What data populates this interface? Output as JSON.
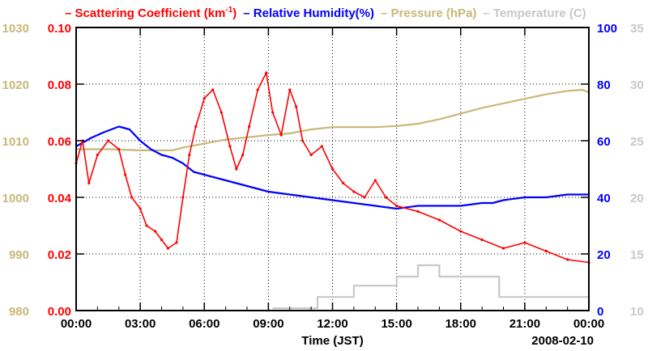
{
  "chart_data": {
    "type": "line",
    "legend": [
      {
        "label": "Scattering Coefficient (km",
        "sup": "-1",
        "close": ")",
        "color": "#ff0000"
      },
      {
        "label": "Relative Humidity(%)",
        "color": "#0000ff"
      },
      {
        "label": "Pressure (hPa)",
        "color": "#c8b878"
      },
      {
        "label": "Temperature (C)",
        "color": "#c8c8c8"
      }
    ],
    "xlabel": "Time (JST)",
    "date": "2008-02-10",
    "x_range": [
      0,
      24
    ],
    "x_ticks": [
      0,
      3,
      6,
      9,
      12,
      15,
      18,
      21,
      24
    ],
    "x_tick_labels": [
      "00:00",
      "03:00",
      "06:00",
      "09:00",
      "12:00",
      "15:00",
      "18:00",
      "21:00",
      "00:00"
    ],
    "axes": {
      "scattering": {
        "range": [
          0,
          0.1
        ],
        "ticks": [
          0,
          0.02,
          0.04,
          0.06,
          0.08,
          0.1
        ],
        "labels": [
          "0.00",
          "0.02",
          "0.04",
          "0.06",
          "0.08",
          "0.10"
        ],
        "color": "#ff0000"
      },
      "pressure": {
        "range": [
          980,
          1030
        ],
        "ticks": [
          980,
          990,
          1000,
          1010,
          1020,
          1030
        ],
        "labels": [
          "980",
          "990",
          "1000",
          "1010",
          "1020",
          "1030"
        ],
        "color": "#c8b878"
      },
      "humidity": {
        "range": [
          0,
          100
        ],
        "ticks": [
          0,
          20,
          40,
          60,
          80,
          100
        ],
        "labels": [
          "0",
          "20",
          "40",
          "60",
          "80",
          "100"
        ],
        "color": "#0000ff"
      },
      "temperature": {
        "range": [
          10,
          35
        ],
        "ticks": [
          10,
          15,
          20,
          25,
          30,
          35
        ],
        "labels": [
          "10",
          "15",
          "20",
          "25",
          "30",
          "35"
        ],
        "color": "#c8c8c8"
      }
    },
    "series": [
      {
        "name": "Pressure (hPa)",
        "axis": "pressure",
        "color": "#c8b878",
        "points": [
          [
            0,
            1008.5
          ],
          [
            1.5,
            1008.5
          ],
          [
            3,
            1008.3
          ],
          [
            4.5,
            1008.3
          ],
          [
            5,
            1008.8
          ],
          [
            6,
            1009.5
          ],
          [
            7,
            1010.2
          ],
          [
            8,
            1010.6
          ],
          [
            9,
            1011
          ],
          [
            10,
            1011.3
          ],
          [
            11,
            1012
          ],
          [
            12,
            1012.4
          ],
          [
            13,
            1012.4
          ],
          [
            14,
            1012.4
          ],
          [
            15,
            1012.6
          ],
          [
            16,
            1013
          ],
          [
            17,
            1013.8
          ],
          [
            18,
            1014.8
          ],
          [
            19,
            1015.8
          ],
          [
            20,
            1016.6
          ],
          [
            21,
            1017.4
          ],
          [
            22,
            1018.2
          ],
          [
            23,
            1018.8
          ],
          [
            23.7,
            1019
          ],
          [
            24,
            1018.5
          ]
        ]
      },
      {
        "name": "Temperature (C)",
        "axis": "temperature",
        "color": "#c8c8c8",
        "points": [
          [
            9.2,
            10.2
          ],
          [
            11.3,
            10.2
          ],
          [
            11.3,
            11.2
          ],
          [
            13,
            11.2
          ],
          [
            13,
            12.2
          ],
          [
            15,
            12.2
          ],
          [
            15,
            13
          ],
          [
            16,
            13
          ],
          [
            16,
            14
          ],
          [
            17,
            14
          ],
          [
            17,
            13
          ],
          [
            19.8,
            13
          ],
          [
            19.8,
            11.2
          ],
          [
            24,
            11.2
          ]
        ]
      },
      {
        "name": "Relative Humidity(%)",
        "axis": "humidity",
        "color": "#0000ff",
        "points": [
          [
            0,
            58
          ],
          [
            0.7,
            61
          ],
          [
            1.3,
            63
          ],
          [
            2,
            65
          ],
          [
            2.5,
            64
          ],
          [
            3,
            60
          ],
          [
            3.5,
            57
          ],
          [
            4,
            55
          ],
          [
            4.5,
            54
          ],
          [
            5,
            52
          ],
          [
            5.5,
            49
          ],
          [
            6,
            48
          ],
          [
            6.5,
            47
          ],
          [
            7,
            46
          ],
          [
            7.5,
            45
          ],
          [
            8,
            44
          ],
          [
            8.5,
            43
          ],
          [
            9,
            42
          ],
          [
            10,
            41
          ],
          [
            11,
            40
          ],
          [
            12,
            39
          ],
          [
            13,
            38
          ],
          [
            14,
            37
          ],
          [
            15,
            36
          ],
          [
            16,
            37
          ],
          [
            17,
            37
          ],
          [
            18,
            37
          ],
          [
            19,
            38
          ],
          [
            19.5,
            38
          ],
          [
            20,
            39
          ],
          [
            21,
            40
          ],
          [
            22,
            40
          ],
          [
            23,
            41
          ],
          [
            24,
            41
          ]
        ]
      },
      {
        "name": "Scattering Coefficient",
        "axis": "scattering",
        "color": "#ff0000",
        "points": [
          [
            0,
            0.052
          ],
          [
            0.3,
            0.06
          ],
          [
            0.6,
            0.045
          ],
          [
            1,
            0.055
          ],
          [
            1.5,
            0.06
          ],
          [
            2,
            0.057
          ],
          [
            2.3,
            0.048
          ],
          [
            2.6,
            0.04
          ],
          [
            3,
            0.036
          ],
          [
            3.3,
            0.03
          ],
          [
            3.7,
            0.028
          ],
          [
            4,
            0.025
          ],
          [
            4.3,
            0.022
          ],
          [
            4.7,
            0.024
          ],
          [
            5,
            0.04
          ],
          [
            5.3,
            0.055
          ],
          [
            5.6,
            0.065
          ],
          [
            6,
            0.075
          ],
          [
            6.4,
            0.078
          ],
          [
            6.8,
            0.07
          ],
          [
            7.2,
            0.058
          ],
          [
            7.5,
            0.05
          ],
          [
            7.8,
            0.055
          ],
          [
            8.1,
            0.065
          ],
          [
            8.5,
            0.078
          ],
          [
            8.9,
            0.084
          ],
          [
            9.2,
            0.07
          ],
          [
            9.6,
            0.062
          ],
          [
            10,
            0.078
          ],
          [
            10.3,
            0.072
          ],
          [
            10.6,
            0.06
          ],
          [
            11,
            0.055
          ],
          [
            11.5,
            0.058
          ],
          [
            12,
            0.05
          ],
          [
            12.5,
            0.045
          ],
          [
            13,
            0.042
          ],
          [
            13.5,
            0.04
          ],
          [
            14,
            0.046
          ],
          [
            14.5,
            0.04
          ],
          [
            15,
            0.037
          ],
          [
            16,
            0.035
          ],
          [
            17,
            0.032
          ],
          [
            18,
            0.028
          ],
          [
            19,
            0.025
          ],
          [
            20,
            0.022
          ],
          [
            21,
            0.024
          ],
          [
            22,
            0.021
          ],
          [
            23,
            0.018
          ],
          [
            24,
            0.017
          ]
        ]
      }
    ]
  }
}
